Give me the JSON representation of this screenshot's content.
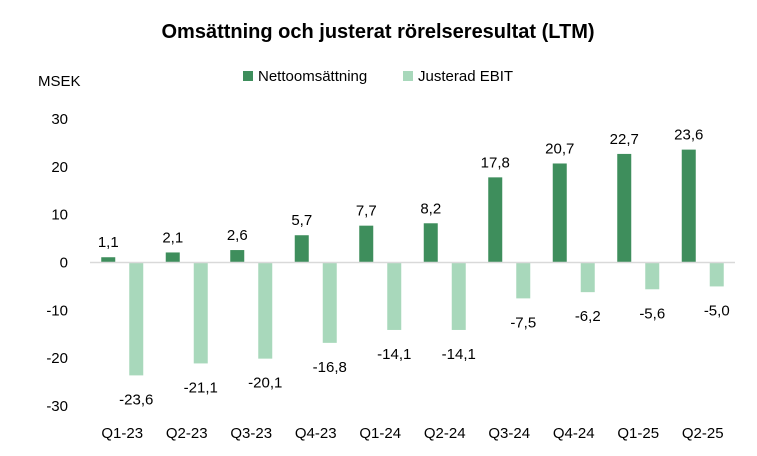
{
  "chart_data": {
    "type": "bar",
    "title": "Omsättning och justerat rörelseresultat (LTM)",
    "ylabel": "MSEK",
    "ylim": [
      -30,
      30
    ],
    "yticks": [
      30,
      20,
      10,
      0,
      -10,
      -20,
      -30
    ],
    "grid": false,
    "legend_position": "top",
    "categories": [
      "Q1-23",
      "Q2-23",
      "Q3-23",
      "Q4-23",
      "Q1-24",
      "Q2-24",
      "Q3-24",
      "Q4-24",
      "Q1-25",
      "Q2-25"
    ],
    "series": [
      {
        "name": "Nettoomsättning",
        "color": "#3e8e5c",
        "values": [
          1.1,
          2.1,
          2.6,
          5.7,
          7.7,
          8.2,
          17.8,
          20.7,
          22.7,
          23.6
        ],
        "labels": [
          "1,1",
          "2,1",
          "2,6",
          "5,7",
          "7,7",
          "8,2",
          "17,8",
          "20,7",
          "22,7",
          "23,6"
        ]
      },
      {
        "name": "Justerad EBIT",
        "color": "#a8d8bb",
        "values": [
          -23.6,
          -21.1,
          -20.1,
          -16.8,
          -14.1,
          -14.1,
          -7.5,
          -6.2,
          -5.6,
          -5.0
        ],
        "labels": [
          "-23,6",
          "-21,1",
          "-20,1",
          "-16,8",
          "-14,1",
          "-14,1",
          "-7,5",
          "-6,2",
          "-5,6",
          "-5,0"
        ]
      }
    ]
  }
}
